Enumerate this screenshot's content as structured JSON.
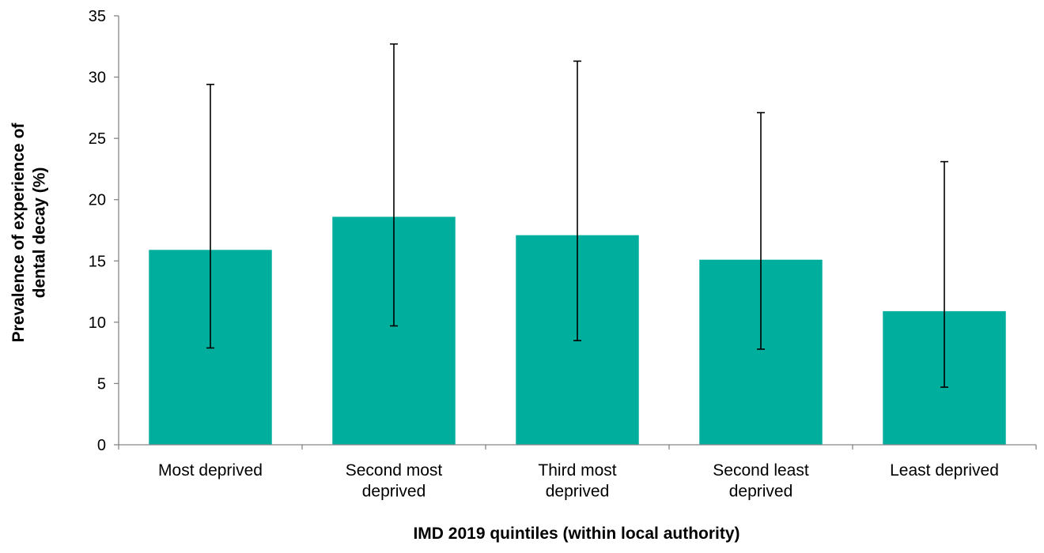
{
  "chart_data": {
    "type": "bar",
    "title": "",
    "categories": [
      [
        "Most deprived"
      ],
      [
        "Second most",
        "deprived"
      ],
      [
        "Third most",
        "deprived"
      ],
      [
        "Second least",
        "deprived"
      ],
      [
        "Least deprived"
      ]
    ],
    "values": [
      15.9,
      18.6,
      17.1,
      15.1,
      10.9
    ],
    "error_low": [
      7.9,
      9.7,
      8.5,
      7.8,
      4.7
    ],
    "error_high": [
      29.4,
      32.7,
      31.3,
      27.1,
      23.1
    ],
    "xlabel": "IMD 2019 quintiles (within local authority)",
    "ylabel": [
      "Prevalence of experience of",
      "dental decay (%)"
    ],
    "ylim": [
      0,
      35
    ],
    "yticks": [
      0,
      5,
      10,
      15,
      20,
      25,
      30,
      35
    ],
    "grid": false,
    "legend": "none",
    "bar_color": "#00AE9E",
    "axis_color": "#868686",
    "error_bar_color": "#000000"
  }
}
